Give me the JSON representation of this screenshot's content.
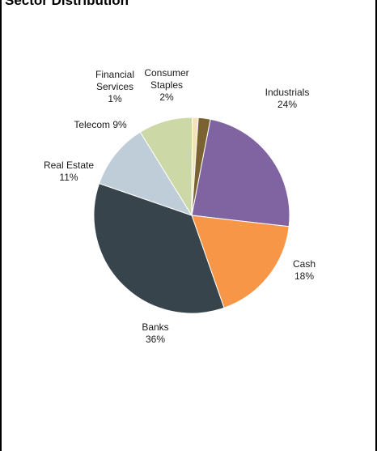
{
  "chart_data": {
    "type": "pie",
    "title": "Sector Distribution",
    "slices": [
      {
        "label": "Industrials",
        "value": 24,
        "pct_label": "24%",
        "color": "#8064a2"
      },
      {
        "label": "Cash",
        "value": 18,
        "pct_label": "18%",
        "color": "#f79646"
      },
      {
        "label": "Banks",
        "value": 36,
        "pct_label": "36%",
        "color": "#38444c"
      },
      {
        "label": "Real Estate",
        "value": 11,
        "pct_label": "11%",
        "color": "#bfcdd8"
      },
      {
        "label": "Telecom",
        "value": 9,
        "pct_label": "9%",
        "color": "#ccd8a6"
      },
      {
        "label": "Financial Services",
        "value": 1,
        "pct_label": "1%",
        "color": "#f4e2b8"
      },
      {
        "label": "Consumer Staples",
        "value": 2,
        "pct_label": "2%",
        "color": "#7b6232"
      }
    ]
  }
}
